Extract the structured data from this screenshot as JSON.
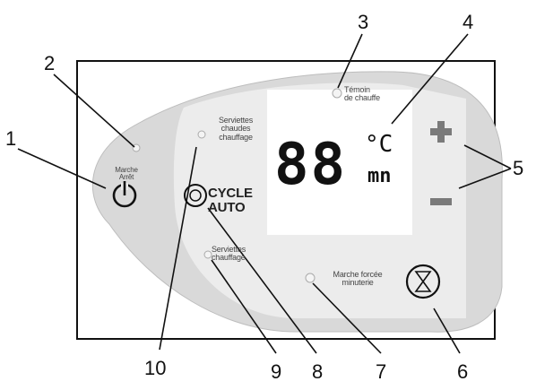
{
  "callouts": [
    "1",
    "2",
    "3",
    "4",
    "5",
    "6",
    "7",
    "8",
    "9",
    "10"
  ],
  "panel": {
    "marche_arret": "Marche\nArrêt",
    "temoin_chauffe": "Témoin\nde chauffe",
    "serviettes_chaudes": "Serviettes\nchaudes\nchauffage",
    "cycle_auto": "CYCLE\nAUTO",
    "serviettes_chauffage": "Serviettes\nchauffage",
    "marche_forcee": "Marche forcée\nminuterie",
    "display_digits": "88",
    "display_unit_c": "°C",
    "display_unit_mn": "mn",
    "plus_symbol": "+",
    "minus_symbol": "−"
  },
  "colors": {
    "frame": "#111111",
    "panel_gray": "#d9d9d9",
    "panel_light": "#ececec",
    "display_bg": "#ffffff",
    "button_gray": "#7a7a7a",
    "lines": "#111111"
  },
  "icons": {
    "power": "power-icon",
    "plus": "plus-icon",
    "minus": "minus-icon",
    "hourglass": "hourglass-icon",
    "cycle": "cycle-icon"
  }
}
